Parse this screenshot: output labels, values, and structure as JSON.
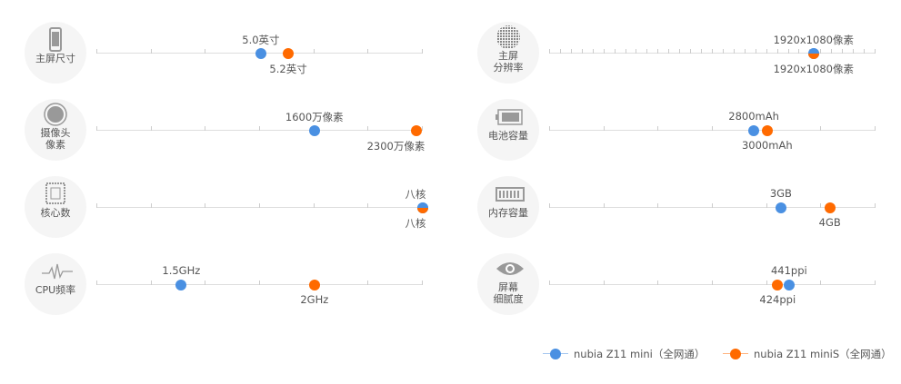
{
  "colors": {
    "series_a": "#4a90e2",
    "series_b": "#ff6a00"
  },
  "legend": [
    {
      "label": "nubia Z11 mini（全网通）"
    },
    {
      "label": "nubia Z11 miniS（全网通）"
    }
  ],
  "specs": [
    {
      "label": "主屏尺寸",
      "icon": "phone-icon",
      "a": {
        "text": "5.0英寸",
        "pct": 50.4
      },
      "b": {
        "text": "5.2英寸",
        "pct": 58.8
      },
      "ticks": 6
    },
    {
      "label": "摄像头\n像素",
      "icon": "camera-icon",
      "a": {
        "text": "1600万像素",
        "pct": 66.8
      },
      "b": {
        "text": "2300万像素",
        "pct": 98
      },
      "ticks": 6
    },
    {
      "label": "核心数",
      "icon": "cpu-chip-icon",
      "a": {
        "text": "八核",
        "pct": 100
      },
      "b": {
        "text": "八核",
        "pct": 100
      },
      "ticks": 6
    },
    {
      "label": "CPU频率",
      "icon": "waveform-icon",
      "a": {
        "text": "1.5GHz",
        "pct": 26
      },
      "b": {
        "text": "2GHz",
        "pct": 66.8
      },
      "ticks": 6
    },
    {
      "label": "主屏\n分辨率",
      "icon": "resolution-icon",
      "a": {
        "text": "1920x1080像素",
        "pct": 81
      },
      "b": {
        "text": "1920x1080像素",
        "pct": 81
      },
      "ticks": 30
    },
    {
      "label": "电池容量",
      "icon": "battery-icon",
      "a": {
        "text": "2800mAh",
        "pct": 62.7
      },
      "b": {
        "text": "3000mAh",
        "pct": 66.8
      },
      "ticks": 6
    },
    {
      "label": "内存容量",
      "icon": "memory-icon",
      "a": {
        "text": "3GB",
        "pct": 71
      },
      "b": {
        "text": "4GB",
        "pct": 86
      },
      "ticks": 6
    },
    {
      "label": "屏幕\n细腻度",
      "icon": "eye-icon",
      "a": {
        "text": "441ppi",
        "pct": 73.5
      },
      "b": {
        "text": "424ppi",
        "pct": 70
      },
      "ticks": 6
    }
  ]
}
